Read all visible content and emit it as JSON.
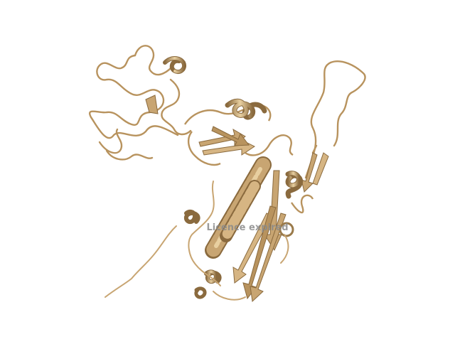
{
  "watermark": {
    "text": "Licence expired"
  },
  "colors": {
    "background": "#ffffff",
    "ribbon": "#c8a572",
    "ribbon_dark": "#8a6a3e",
    "ribbon_light": "#e8cfa0",
    "watermark": "#8a8a8a"
  },
  "structure": {
    "style": "cartoon-ribbon",
    "elements": [
      "coil-loops",
      "alpha-helices",
      "beta-strands"
    ]
  }
}
